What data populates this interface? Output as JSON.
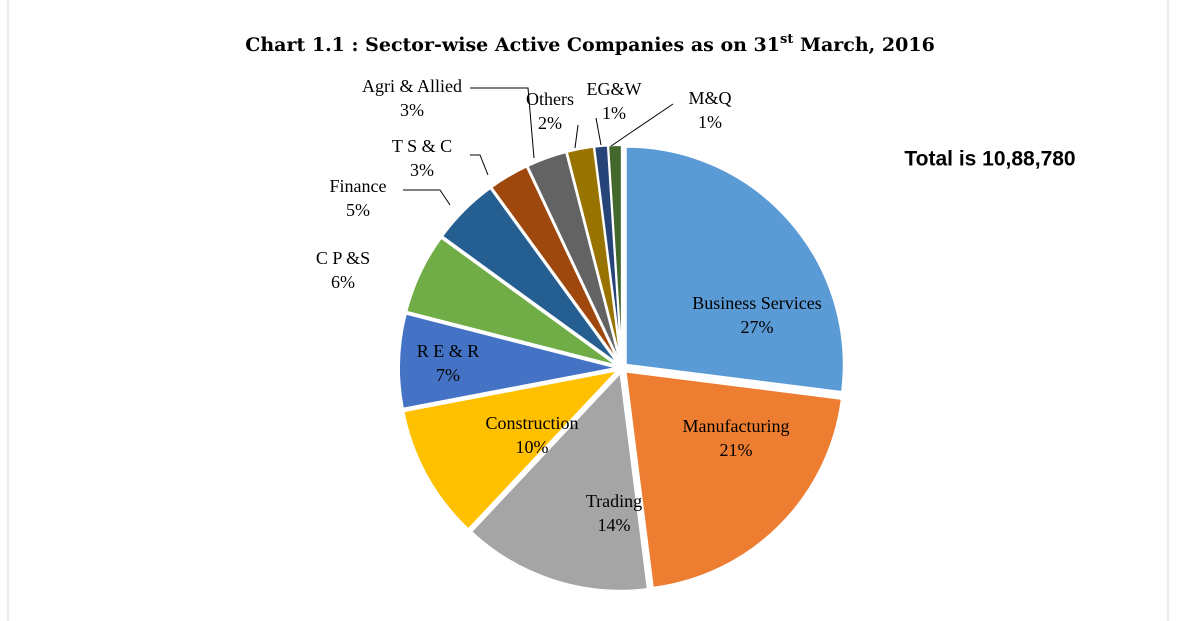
{
  "chart_data": {
    "type": "pie",
    "title": [
      "Chart 1.1 : Sector-wise Active Companies as on 31",
      "st",
      " March, 2016"
    ],
    "annotation": "Total is 10,88,780",
    "categories": [
      "Business Services",
      "Manufacturing",
      "Trading",
      "Construction",
      "R E & R",
      "C P &S",
      "Finance",
      "T S  & C",
      "Agri & Allied",
      "Others",
      "EG&W",
      "M&Q"
    ],
    "values": [
      27,
      21,
      14,
      10,
      7,
      6,
      5,
      3,
      3,
      2,
      1,
      1
    ],
    "value_labels": [
      "27%",
      "21%",
      "14%",
      "10%",
      "7%",
      "6%",
      "5%",
      "3%",
      "3%",
      "2%",
      "1%",
      "1%"
    ],
    "colors": [
      "#5b9bd5",
      "#ed7d31",
      "#a5a5a5",
      "#ffc000",
      "#4472c4",
      "#70ad47",
      "#255e91",
      "#9e480e",
      "#636363",
      "#997300",
      "#264478",
      "#43682b"
    ]
  }
}
